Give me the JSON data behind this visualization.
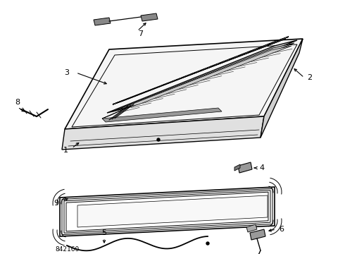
{
  "bg_color": "#ffffff",
  "part_number": "842160",
  "line_color": "#111111",
  "gray_color": "#888888",
  "light_gray": "#cccccc",
  "dark_gray": "#555555"
}
